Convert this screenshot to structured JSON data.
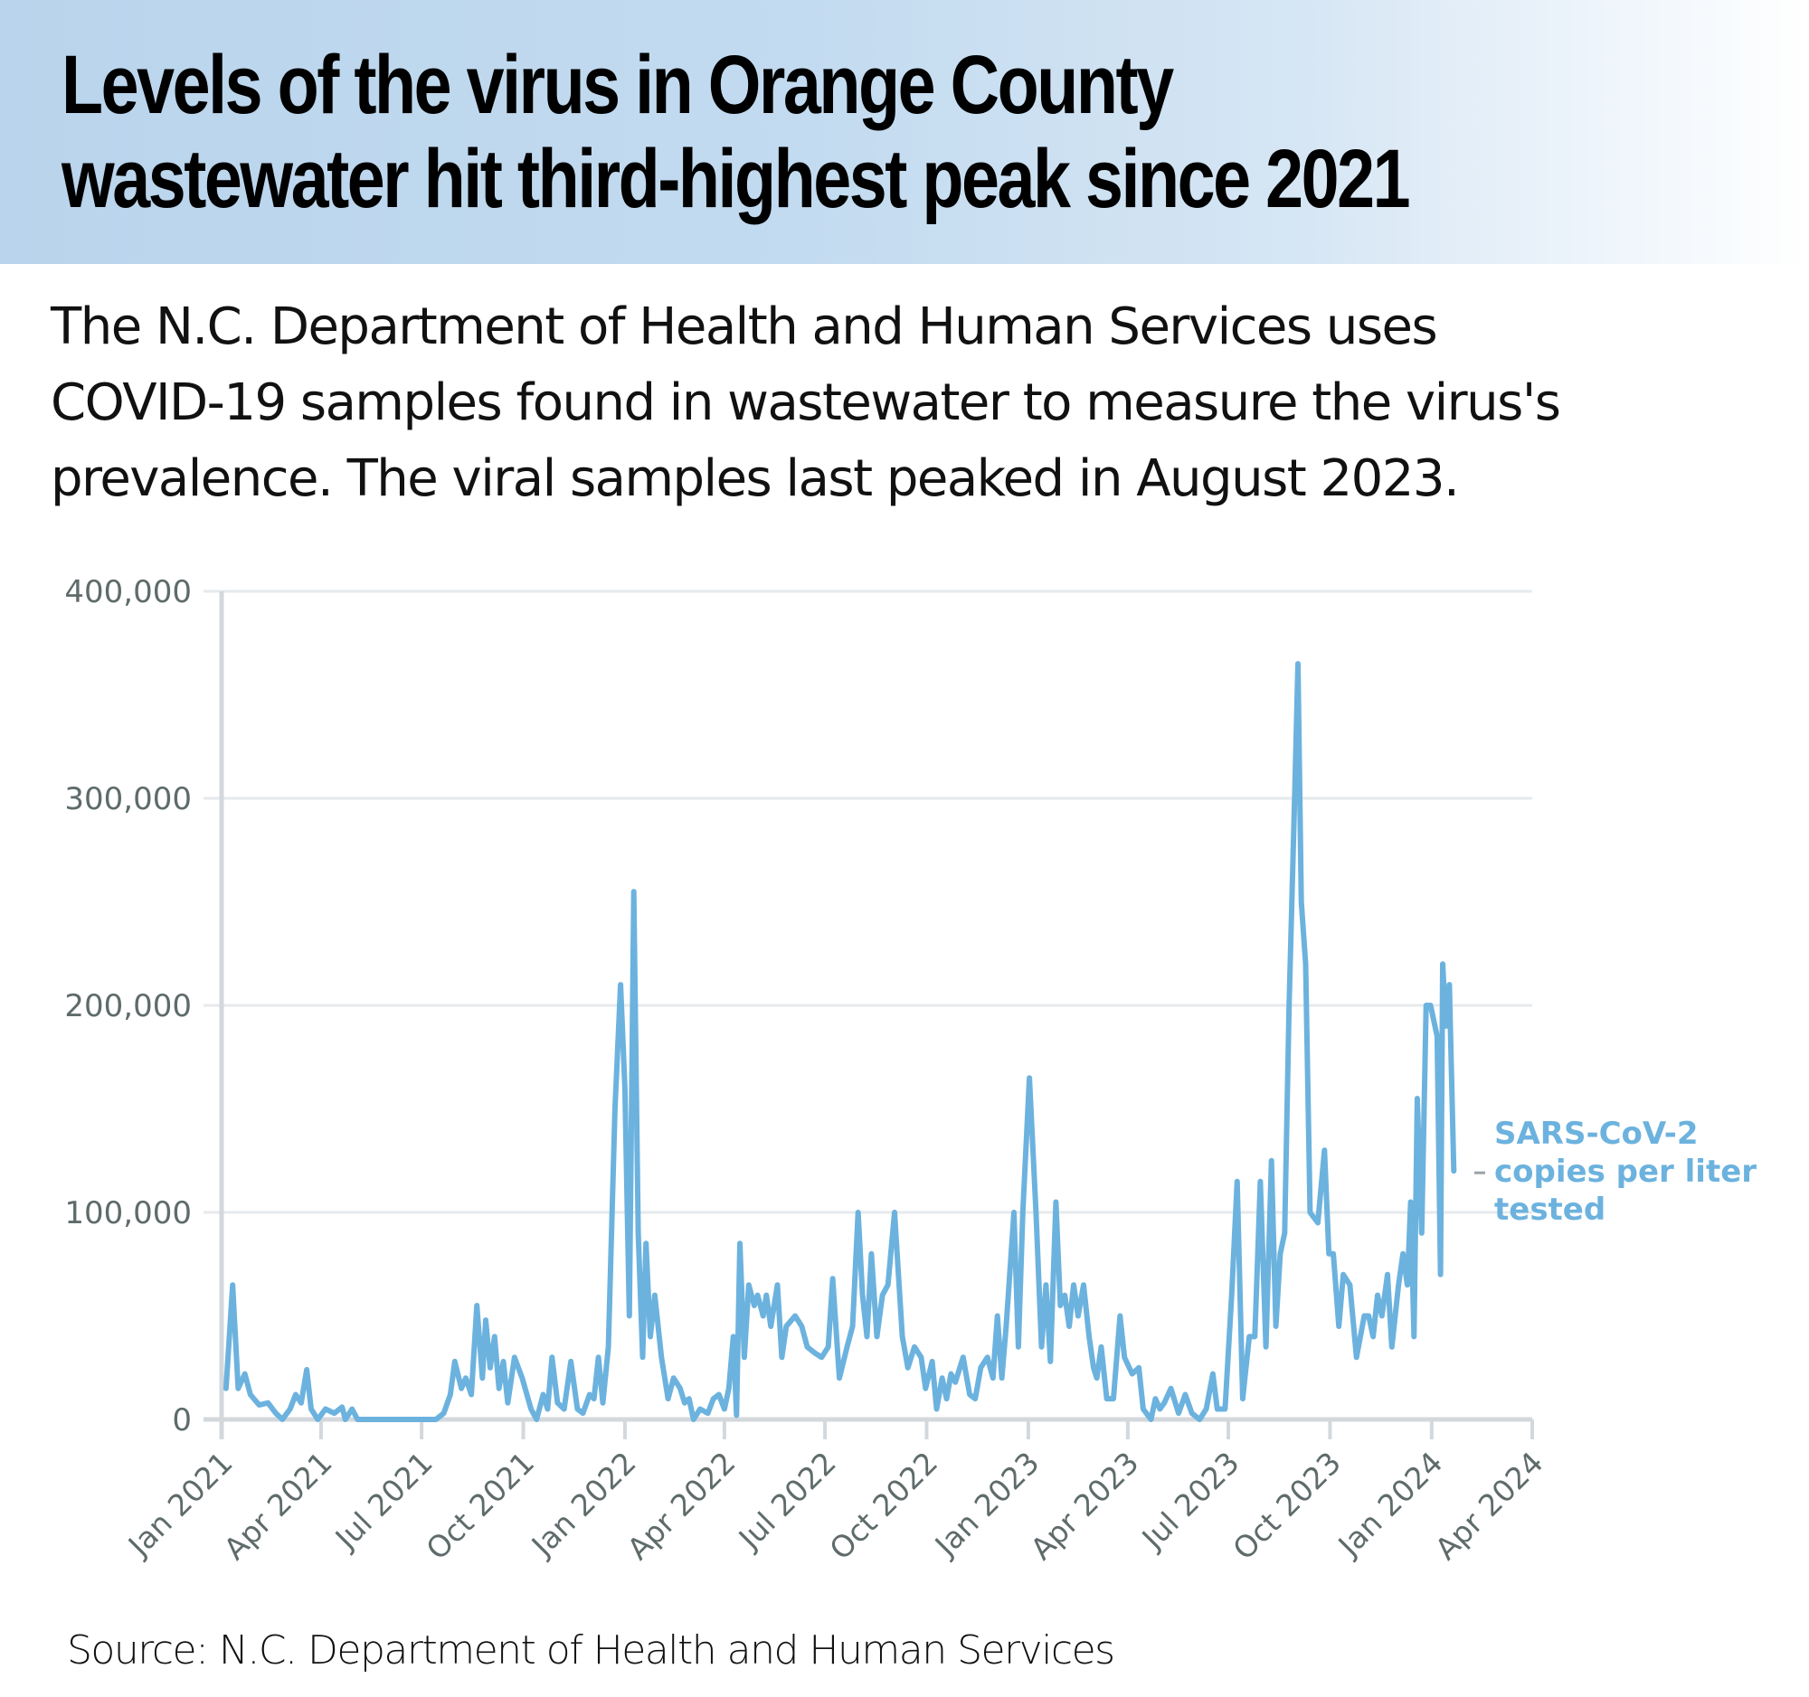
{
  "header": {
    "title_lines": [
      "Levels of the virus in Orange County",
      "wastewater hit third-highest peak since 2021"
    ]
  },
  "subtitle_lines": [
    "The N.C. Department of Health and Human Services uses",
    "COVID-19 samples found in wastewater to measure the virus's",
    "prevalence. The viral samples last peaked in August 2023."
  ],
  "source": "Source: N.C. Department of Health and Human Services",
  "colors": {
    "line": "#6cb2de",
    "grid": "#e6eaec",
    "axis": "#d3d8dc",
    "tick_text": "#5f6b6b",
    "header_bg": "#b9d4ec"
  },
  "chart_data": {
    "type": "line",
    "title": "Levels of the virus in Orange County wastewater hit third-highest peak since 2021",
    "xlabel": "",
    "ylabel": "",
    "xlim": [
      "2021-01-01",
      "2024-04-01"
    ],
    "ylim": [
      0,
      400000
    ],
    "grid": true,
    "yticks": [
      0,
      100000,
      200000,
      300000,
      400000
    ],
    "ytick_labels": [
      "0",
      "100,000",
      "200,000",
      "300,000",
      "400,000"
    ],
    "xticks": [
      "2021-01-01",
      "2021-04-01",
      "2021-07-01",
      "2021-10-01",
      "2022-01-01",
      "2022-04-01",
      "2022-07-01",
      "2022-10-01",
      "2023-01-01",
      "2023-04-01",
      "2023-07-01",
      "2023-10-01",
      "2024-01-01",
      "2024-04-01"
    ],
    "xtick_labels": [
      "Jan 2021",
      "Apr 2021",
      "Jul 2021",
      "Oct 2021",
      "Jan 2022",
      "Apr 2022",
      "Jul 2022",
      "Oct 2022",
      "Jan 2023",
      "Apr 2023",
      "Jul 2023",
      "Oct 2023",
      "Jan 2024",
      "Apr 2024"
    ],
    "series": [
      {
        "name": "SARS-CoV-2 copies per liter tested",
        "label_lines": [
          "SARS-CoV-2",
          "copies per liter",
          "tested"
        ],
        "points": [
          [
            "2021-01-05",
            15000
          ],
          [
            "2021-01-11",
            65000
          ],
          [
            "2021-01-16",
            15000
          ],
          [
            "2021-01-22",
            22000
          ],
          [
            "2021-01-27",
            12000
          ],
          [
            "2021-02-04",
            7000
          ],
          [
            "2021-02-12",
            8000
          ],
          [
            "2021-02-19",
            3000
          ],
          [
            "2021-02-25",
            0
          ],
          [
            "2021-03-04",
            5000
          ],
          [
            "2021-03-09",
            12000
          ],
          [
            "2021-03-14",
            8000
          ],
          [
            "2021-03-19",
            24000
          ],
          [
            "2021-03-23",
            5000
          ],
          [
            "2021-03-29",
            0
          ],
          [
            "2021-04-05",
            5000
          ],
          [
            "2021-04-13",
            3000
          ],
          [
            "2021-04-20",
            6000
          ],
          [
            "2021-04-23",
            0
          ],
          [
            "2021-04-29",
            5000
          ],
          [
            "2021-05-04",
            0
          ],
          [
            "2021-07-14",
            0
          ],
          [
            "2021-07-21",
            3000
          ],
          [
            "2021-07-27",
            12000
          ],
          [
            "2021-07-31",
            28000
          ],
          [
            "2021-08-06",
            15000
          ],
          [
            "2021-08-10",
            20000
          ],
          [
            "2021-08-15",
            12000
          ],
          [
            "2021-08-20",
            55000
          ],
          [
            "2021-08-25",
            20000
          ],
          [
            "2021-08-28",
            48000
          ],
          [
            "2021-09-01",
            25000
          ],
          [
            "2021-09-05",
            40000
          ],
          [
            "2021-09-09",
            15000
          ],
          [
            "2021-09-13",
            28000
          ],
          [
            "2021-09-17",
            8000
          ],
          [
            "2021-09-23",
            30000
          ],
          [
            "2021-09-30",
            20000
          ],
          [
            "2021-10-08",
            5000
          ],
          [
            "2021-10-13",
            0
          ],
          [
            "2021-10-19",
            12000
          ],
          [
            "2021-10-23",
            5000
          ],
          [
            "2021-10-27",
            30000
          ],
          [
            "2021-11-01",
            8000
          ],
          [
            "2021-11-07",
            5000
          ],
          [
            "2021-11-13",
            28000
          ],
          [
            "2021-11-19",
            5000
          ],
          [
            "2021-11-24",
            3000
          ],
          [
            "2021-11-30",
            12000
          ],
          [
            "2021-12-04",
            10000
          ],
          [
            "2021-12-08",
            30000
          ],
          [
            "2021-12-12",
            8000
          ],
          [
            "2021-12-17",
            35000
          ],
          [
            "2021-12-23",
            150000
          ],
          [
            "2021-12-28",
            210000
          ],
          [
            "2022-01-01",
            160000
          ],
          [
            "2022-01-05",
            50000
          ],
          [
            "2022-01-09",
            255000
          ],
          [
            "2022-01-13",
            90000
          ],
          [
            "2022-01-17",
            30000
          ],
          [
            "2022-01-20",
            85000
          ],
          [
            "2022-01-24",
            40000
          ],
          [
            "2022-01-28",
            60000
          ],
          [
            "2022-02-03",
            30000
          ],
          [
            "2022-02-09",
            10000
          ],
          [
            "2022-02-14",
            20000
          ],
          [
            "2022-02-20",
            15000
          ],
          [
            "2022-02-24",
            8000
          ],
          [
            "2022-02-28",
            10000
          ],
          [
            "2022-03-04",
            0
          ],
          [
            "2022-03-10",
            5000
          ],
          [
            "2022-03-17",
            3000
          ],
          [
            "2022-03-22",
            10000
          ],
          [
            "2022-03-27",
            12000
          ],
          [
            "2022-04-01",
            5000
          ],
          [
            "2022-04-05",
            15000
          ],
          [
            "2022-04-09",
            40000
          ],
          [
            "2022-04-12",
            2000
          ],
          [
            "2022-04-15",
            85000
          ],
          [
            "2022-04-19",
            30000
          ],
          [
            "2022-04-23",
            65000
          ],
          [
            "2022-04-28",
            55000
          ],
          [
            "2022-05-01",
            60000
          ],
          [
            "2022-05-06",
            50000
          ],
          [
            "2022-05-09",
            60000
          ],
          [
            "2022-05-13",
            45000
          ],
          [
            "2022-05-19",
            65000
          ],
          [
            "2022-05-23",
            30000
          ],
          [
            "2022-05-27",
            45000
          ],
          [
            "2022-06-04",
            50000
          ],
          [
            "2022-06-10",
            45000
          ],
          [
            "2022-06-15",
            35000
          ],
          [
            "2022-06-22",
            32000
          ],
          [
            "2022-06-28",
            30000
          ],
          [
            "2022-07-04",
            35000
          ],
          [
            "2022-07-08",
            68000
          ],
          [
            "2022-07-14",
            20000
          ],
          [
            "2022-07-21",
            35000
          ],
          [
            "2022-07-26",
            45000
          ],
          [
            "2022-07-31",
            100000
          ],
          [
            "2022-08-04",
            60000
          ],
          [
            "2022-08-08",
            40000
          ],
          [
            "2022-08-12",
            80000
          ],
          [
            "2022-08-17",
            40000
          ],
          [
            "2022-08-22",
            60000
          ],
          [
            "2022-08-27",
            65000
          ],
          [
            "2022-09-02",
            100000
          ],
          [
            "2022-09-09",
            40000
          ],
          [
            "2022-09-14",
            25000
          ],
          [
            "2022-09-20",
            35000
          ],
          [
            "2022-09-26",
            30000
          ],
          [
            "2022-09-30",
            15000
          ],
          [
            "2022-10-06",
            28000
          ],
          [
            "2022-10-10",
            5000
          ],
          [
            "2022-10-15",
            20000
          ],
          [
            "2022-10-19",
            10000
          ],
          [
            "2022-10-23",
            22000
          ],
          [
            "2022-10-27",
            18000
          ],
          [
            "2022-11-03",
            30000
          ],
          [
            "2022-11-09",
            12000
          ],
          [
            "2022-11-14",
            10000
          ],
          [
            "2022-11-19",
            25000
          ],
          [
            "2022-11-25",
            30000
          ],
          [
            "2022-11-30",
            20000
          ],
          [
            "2022-12-04",
            50000
          ],
          [
            "2022-12-08",
            20000
          ],
          [
            "2022-12-12",
            45000
          ],
          [
            "2022-12-19",
            100000
          ],
          [
            "2022-12-23",
            35000
          ],
          [
            "2022-12-27",
            100000
          ],
          [
            "2023-01-02",
            165000
          ],
          [
            "2023-01-08",
            100000
          ],
          [
            "2023-01-13",
            35000
          ],
          [
            "2023-01-17",
            65000
          ],
          [
            "2023-01-21",
            28000
          ],
          [
            "2023-01-26",
            105000
          ],
          [
            "2023-01-30",
            55000
          ],
          [
            "2023-02-03",
            60000
          ],
          [
            "2023-02-07",
            45000
          ],
          [
            "2023-02-11",
            65000
          ],
          [
            "2023-02-15",
            50000
          ],
          [
            "2023-02-20",
            65000
          ],
          [
            "2023-02-25",
            40000
          ],
          [
            "2023-03-01",
            25000
          ],
          [
            "2023-03-04",
            20000
          ],
          [
            "2023-03-08",
            35000
          ],
          [
            "2023-03-13",
            10000
          ],
          [
            "2023-03-19",
            10000
          ],
          [
            "2023-03-25",
            50000
          ],
          [
            "2023-03-29",
            30000
          ],
          [
            "2023-04-05",
            22000
          ],
          [
            "2023-04-11",
            25000
          ],
          [
            "2023-04-15",
            5000
          ],
          [
            "2023-04-22",
            0
          ],
          [
            "2023-04-26",
            10000
          ],
          [
            "2023-04-30",
            5000
          ],
          [
            "2023-05-04",
            8000
          ],
          [
            "2023-05-10",
            15000
          ],
          [
            "2023-05-17",
            3000
          ],
          [
            "2023-05-23",
            12000
          ],
          [
            "2023-05-29",
            3000
          ],
          [
            "2023-06-05",
            0
          ],
          [
            "2023-06-11",
            5000
          ],
          [
            "2023-06-17",
            22000
          ],
          [
            "2023-06-21",
            5000
          ],
          [
            "2023-06-28",
            5000
          ],
          [
            "2023-07-04",
            60000
          ],
          [
            "2023-07-09",
            115000
          ],
          [
            "2023-07-14",
            10000
          ],
          [
            "2023-07-20",
            40000
          ],
          [
            "2023-07-25",
            40000
          ],
          [
            "2023-07-30",
            115000
          ],
          [
            "2023-08-04",
            35000
          ],
          [
            "2023-08-09",
            125000
          ],
          [
            "2023-08-13",
            45000
          ],
          [
            "2023-08-17",
            80000
          ],
          [
            "2023-08-21",
            90000
          ],
          [
            "2023-08-25",
            200000
          ],
          [
            "2023-08-30",
            300000
          ],
          [
            "2023-09-02",
            365000
          ],
          [
            "2023-09-05",
            250000
          ],
          [
            "2023-09-09",
            220000
          ],
          [
            "2023-09-13",
            100000
          ],
          [
            "2023-09-20",
            95000
          ],
          [
            "2023-09-26",
            130000
          ],
          [
            "2023-09-30",
            80000
          ],
          [
            "2023-10-04",
            80000
          ],
          [
            "2023-10-09",
            45000
          ],
          [
            "2023-10-13",
            70000
          ],
          [
            "2023-10-19",
            65000
          ],
          [
            "2023-10-25",
            30000
          ],
          [
            "2023-11-01",
            50000
          ],
          [
            "2023-11-05",
            50000
          ],
          [
            "2023-11-09",
            40000
          ],
          [
            "2023-11-13",
            60000
          ],
          [
            "2023-11-17",
            50000
          ],
          [
            "2023-11-22",
            70000
          ],
          [
            "2023-11-26",
            35000
          ],
          [
            "2023-12-02",
            65000
          ],
          [
            "2023-12-06",
            80000
          ],
          [
            "2023-12-10",
            65000
          ],
          [
            "2023-12-13",
            105000
          ],
          [
            "2023-12-16",
            40000
          ],
          [
            "2023-12-19",
            155000
          ],
          [
            "2023-12-23",
            90000
          ],
          [
            "2023-12-27",
            200000
          ],
          [
            "2023-12-31",
            200000
          ],
          [
            "2024-01-06",
            185000
          ],
          [
            "2024-01-09",
            70000
          ],
          [
            "2024-01-11",
            220000
          ],
          [
            "2024-01-14",
            190000
          ],
          [
            "2024-01-17",
            210000
          ],
          [
            "2024-01-21",
            120000
          ]
        ]
      }
    ],
    "legend": "direct label, right of line end"
  }
}
